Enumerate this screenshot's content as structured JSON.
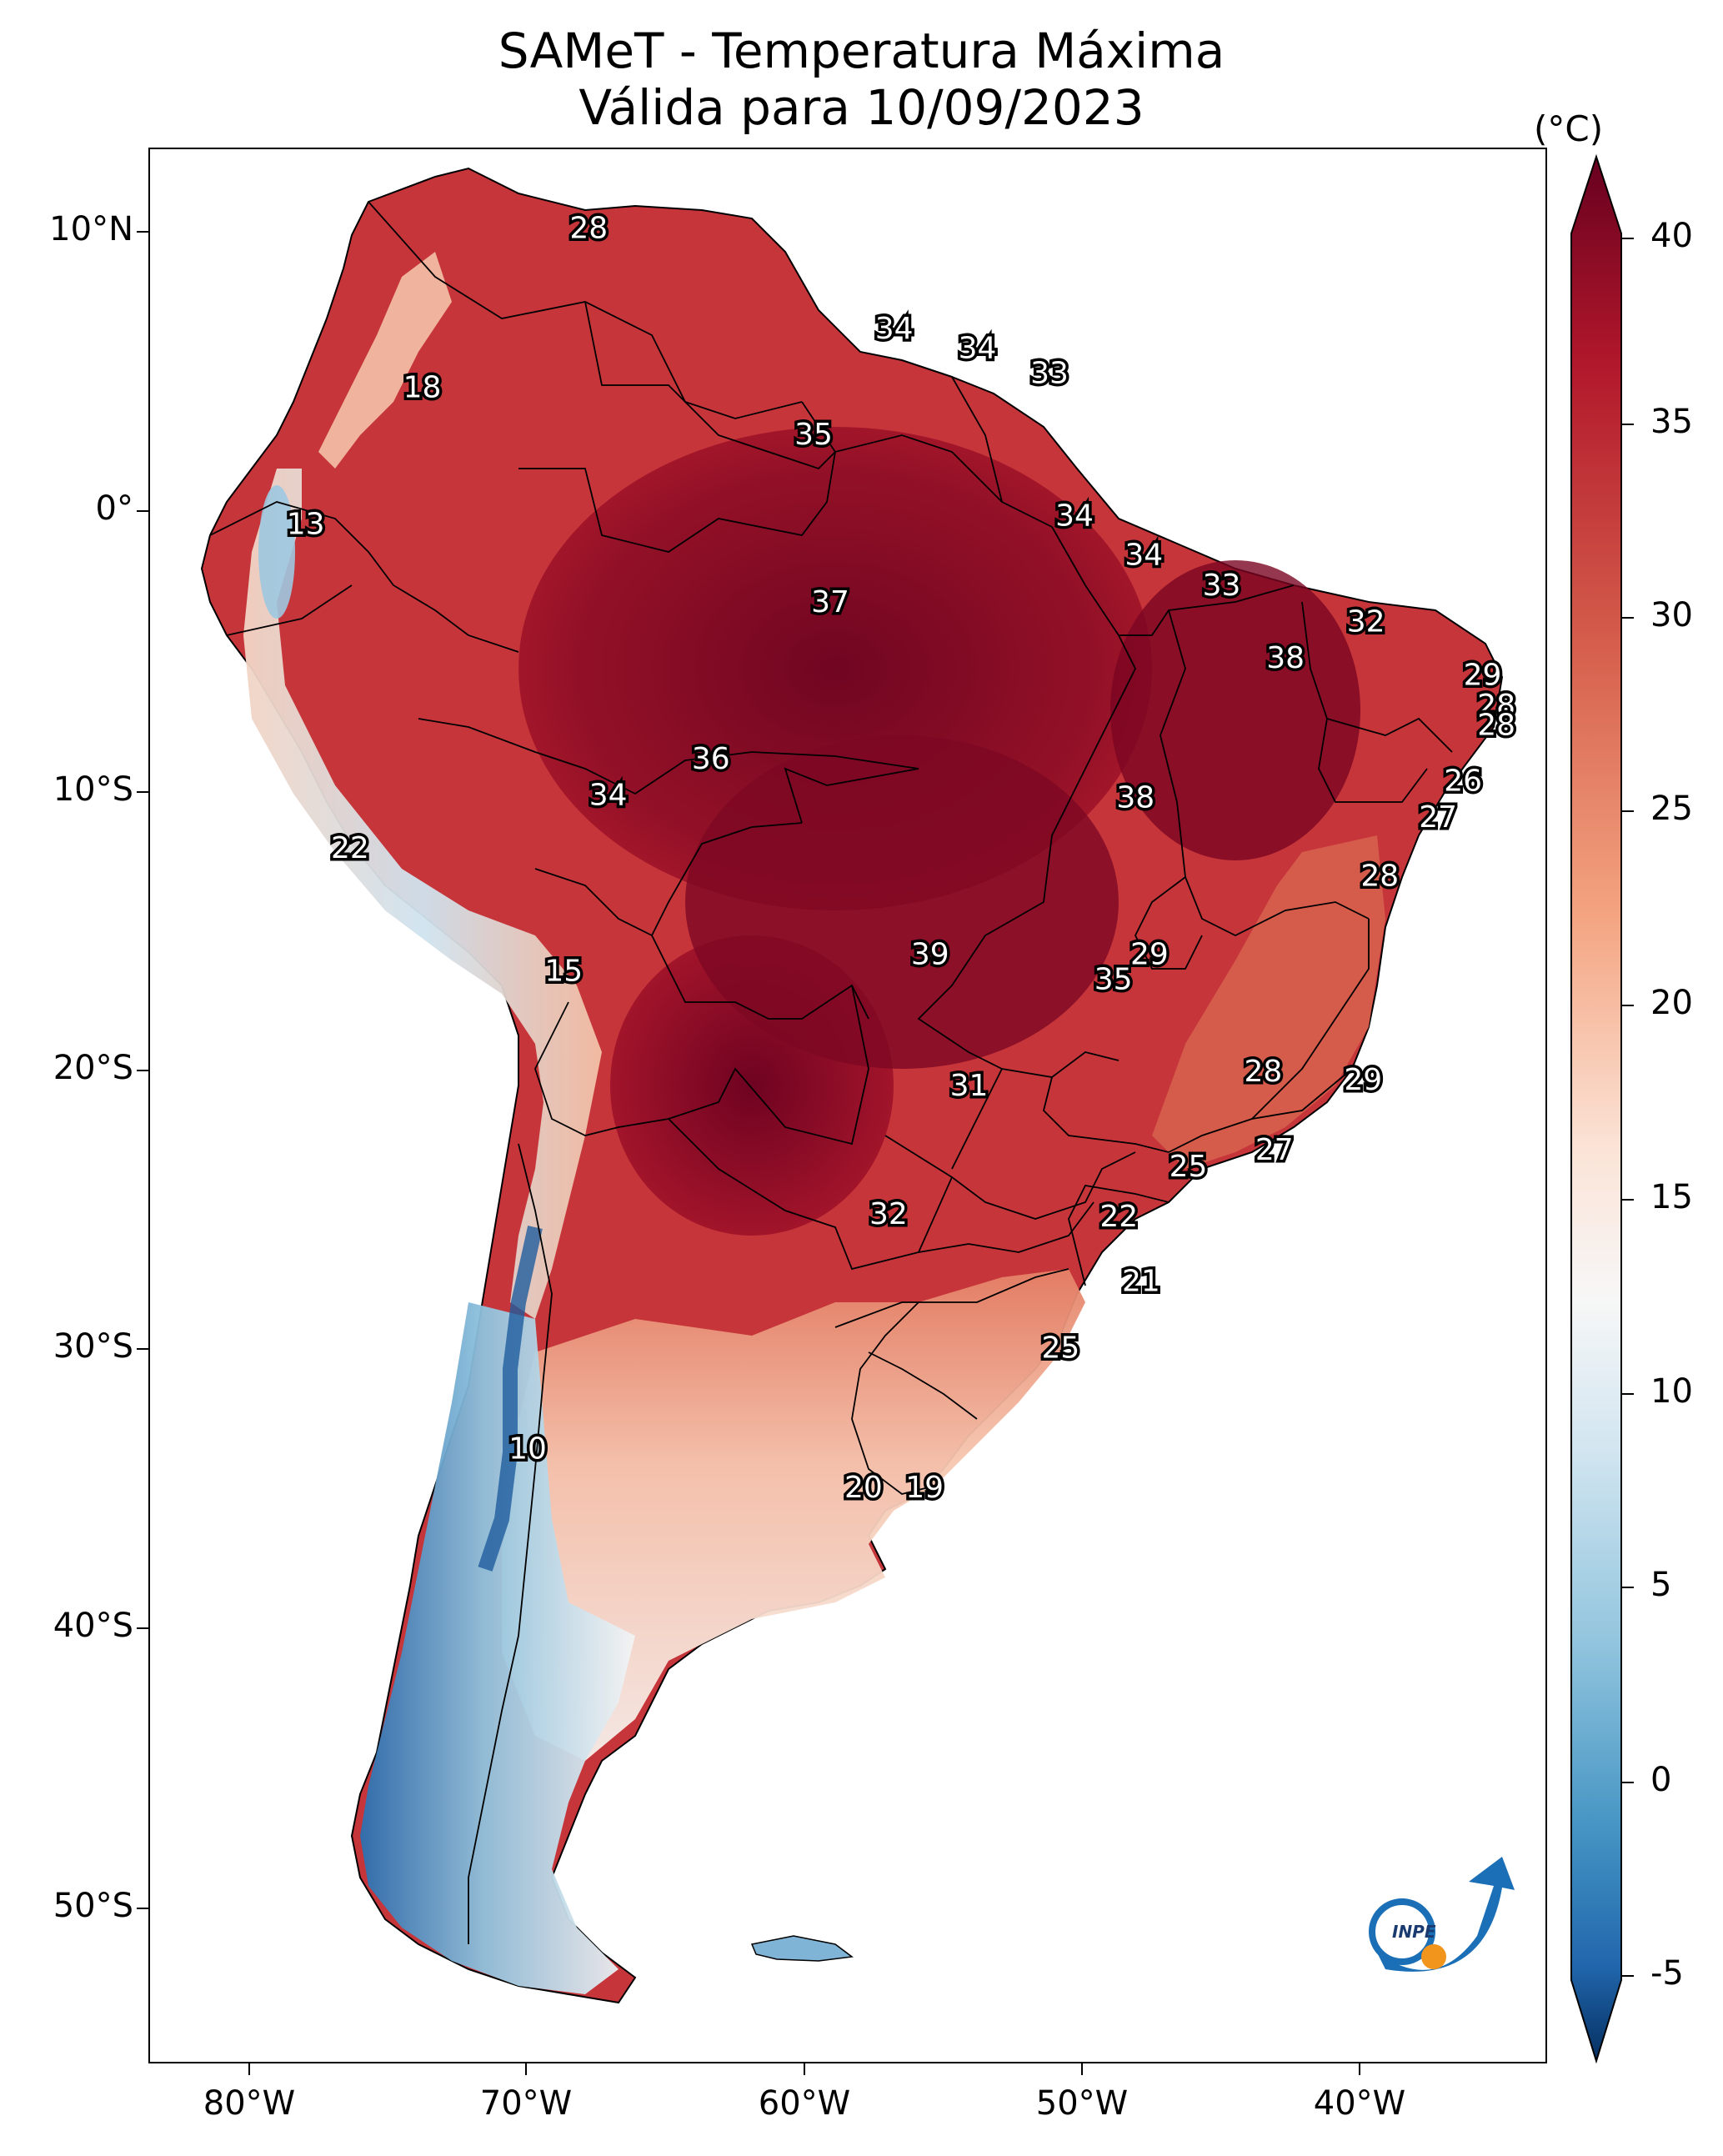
{
  "title": {
    "line1": "SAMeT - Temperatura Máxima",
    "line2": "Válida para 10/09/2023"
  },
  "axes": {
    "lat_labels": [
      "10°N",
      "0°",
      "10°S",
      "20°S",
      "30°S",
      "40°S",
      "50°S"
    ],
    "lon_labels": [
      "80°W",
      "70°W",
      "60°W",
      "50°W",
      "40°W"
    ]
  },
  "colorbar": {
    "unit": "(°C)",
    "ticks": [
      "40",
      "35",
      "30",
      "25",
      "20",
      "15",
      "10",
      "5",
      "0",
      "-5"
    ],
    "min": -5,
    "max": 40,
    "colors": {
      "hot": "#67001f",
      "warm": "#b2182b",
      "mild": "#f4a582",
      "neutral": "#f7f7f7",
      "cool": "#92c5de",
      "cold": "#2166ac",
      "coldest": "#053061"
    }
  },
  "logo": {
    "text": "INPE"
  },
  "temperature_labels": [
    {
      "v": "28",
      "lon": -67.8,
      "lat": 10.2
    },
    {
      "v": "34",
      "lon": -56.8,
      "lat": 6.6
    },
    {
      "v": "34",
      "lon": -53.8,
      "lat": 5.9
    },
    {
      "v": "33",
      "lon": -51.2,
      "lat": 5.0
    },
    {
      "v": "18",
      "lon": -73.8,
      "lat": 4.5
    },
    {
      "v": "35",
      "lon": -59.7,
      "lat": 2.8
    },
    {
      "v": "13",
      "lon": -78.0,
      "lat": -0.4
    },
    {
      "v": "34",
      "lon": -50.3,
      "lat": -0.1
    },
    {
      "v": "34",
      "lon": -47.8,
      "lat": -1.5
    },
    {
      "v": "37",
      "lon": -59.1,
      "lat": -3.2
    },
    {
      "v": "33",
      "lon": -45.0,
      "lat": -2.6
    },
    {
      "v": "32",
      "lon": -39.8,
      "lat": -3.9
    },
    {
      "v": "38",
      "lon": -42.7,
      "lat": -5.2
    },
    {
      "v": "29",
      "lon": -35.6,
      "lat": -5.8
    },
    {
      "v": "28",
      "lon": -35.1,
      "lat": -6.9
    },
    {
      "v": "28",
      "lon": -35.1,
      "lat": -7.6
    },
    {
      "v": "36",
      "lon": -63.4,
      "lat": -8.8
    },
    {
      "v": "34",
      "lon": -67.1,
      "lat": -10.1
    },
    {
      "v": "38",
      "lon": -48.1,
      "lat": -10.2
    },
    {
      "v": "26",
      "lon": -36.3,
      "lat": -9.6
    },
    {
      "v": "27",
      "lon": -37.2,
      "lat": -10.9
    },
    {
      "v": "22",
      "lon": -76.4,
      "lat": -12.0
    },
    {
      "v": "28",
      "lon": -39.3,
      "lat": -13.0
    },
    {
      "v": "39",
      "lon": -55.5,
      "lat": -15.8
    },
    {
      "v": "29",
      "lon": -47.6,
      "lat": -15.8
    },
    {
      "v": "35",
      "lon": -48.9,
      "lat": -16.7
    },
    {
      "v": "15",
      "lon": -68.7,
      "lat": -16.4
    },
    {
      "v": "28",
      "lon": -43.5,
      "lat": -20.0
    },
    {
      "v": "31",
      "lon": -54.1,
      "lat": -20.5
    },
    {
      "v": "29",
      "lon": -39.9,
      "lat": -20.3
    },
    {
      "v": "27",
      "lon": -43.1,
      "lat": -22.8
    },
    {
      "v": "25",
      "lon": -46.2,
      "lat": -23.4
    },
    {
      "v": "32",
      "lon": -57.0,
      "lat": -25.1
    },
    {
      "v": "22",
      "lon": -48.7,
      "lat": -25.2
    },
    {
      "v": "21",
      "lon": -47.9,
      "lat": -27.5
    },
    {
      "v": "25",
      "lon": -50.8,
      "lat": -29.9
    },
    {
      "v": "10",
      "lon": -70.0,
      "lat": -33.5
    },
    {
      "v": "20",
      "lon": -57.9,
      "lat": -34.9
    },
    {
      "v": "19",
      "lon": -55.7,
      "lat": -34.9
    }
  ]
}
